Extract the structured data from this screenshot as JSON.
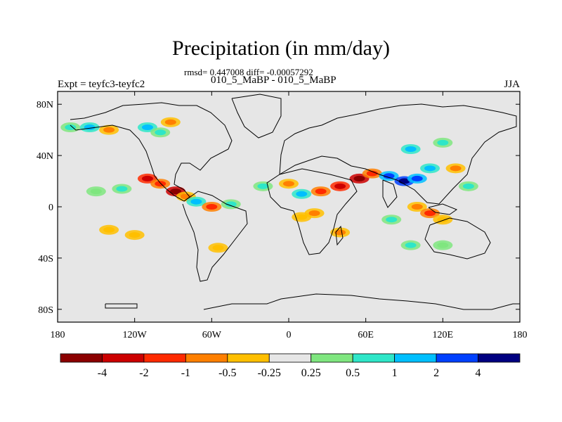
{
  "title": "Precipitation (in mm/day)",
  "stats": "rmsd= 0.447008 diff= -0.00057292",
  "subtitle": "010_5_MaBP - 010_5_MaBP",
  "expt": "Expt = teyfc3-teyfc2",
  "season": "JJA",
  "map": {
    "lon_range": [
      -180,
      180
    ],
    "lat_range": [
      -90,
      90
    ],
    "background_color": "#e6e6e6",
    "lon_ticks": [
      {
        "value": -180,
        "label": "180"
      },
      {
        "value": -120,
        "label": "120W"
      },
      {
        "value": -60,
        "label": "60W"
      },
      {
        "value": 0,
        "label": "0"
      },
      {
        "value": 60,
        "label": "60E"
      },
      {
        "value": 120,
        "label": "120E"
      },
      {
        "value": 180,
        "label": "180"
      }
    ],
    "lat_ticks": [
      {
        "value": 80,
        "label": "80N"
      },
      {
        "value": 40,
        "label": "40N"
      },
      {
        "value": 0,
        "label": "0"
      },
      {
        "value": -40,
        "label": "40S"
      },
      {
        "value": -80,
        "label": "80S"
      }
    ]
  },
  "colorbar": {
    "colors": [
      "#8b0000",
      "#cc0000",
      "#ff2a00",
      "#ff7f00",
      "#ffbf00",
      "#e6e6e6",
      "#7fe67f",
      "#2ee6c8",
      "#00bfff",
      "#0040ff",
      "#000080"
    ],
    "labels": [
      "-4",
      "-2",
      "-1",
      "-0.5",
      "-0.25",
      "0.25",
      "0.5",
      "1",
      "2",
      "4"
    ]
  },
  "anomalies": [
    {
      "lon": -170,
      "lat": 62,
      "level": 7
    },
    {
      "lon": -155,
      "lat": 62,
      "level": 8
    },
    {
      "lon": -140,
      "lat": 60,
      "level": 3
    },
    {
      "lon": -110,
      "lat": 62,
      "level": 8
    },
    {
      "lon": -100,
      "lat": 58,
      "level": 7
    },
    {
      "lon": -92,
      "lat": 66,
      "level": 3
    },
    {
      "lon": -150,
      "lat": 12,
      "level": 6
    },
    {
      "lon": -130,
      "lat": 14,
      "level": 7
    },
    {
      "lon": -110,
      "lat": 22,
      "level": 1
    },
    {
      "lon": -100,
      "lat": 18,
      "level": 2
    },
    {
      "lon": -88,
      "lat": 12,
      "level": 0
    },
    {
      "lon": -80,
      "lat": 8,
      "level": 3
    },
    {
      "lon": -72,
      "lat": 4,
      "level": 8
    },
    {
      "lon": -60,
      "lat": 0,
      "level": 2
    },
    {
      "lon": -45,
      "lat": 2,
      "level": 7
    },
    {
      "lon": -140,
      "lat": -18,
      "level": 4
    },
    {
      "lon": -120,
      "lat": -22,
      "level": 4
    },
    {
      "lon": -20,
      "lat": 16,
      "level": 7
    },
    {
      "lon": 0,
      "lat": 18,
      "level": 3
    },
    {
      "lon": 10,
      "lat": 10,
      "level": 8
    },
    {
      "lon": 25,
      "lat": 12,
      "level": 2
    },
    {
      "lon": 40,
      "lat": 16,
      "level": 1
    },
    {
      "lon": 55,
      "lat": 22,
      "level": 0
    },
    {
      "lon": 65,
      "lat": 26,
      "level": 2
    },
    {
      "lon": 78,
      "lat": 24,
      "level": 9
    },
    {
      "lon": 90,
      "lat": 20,
      "level": 10
    },
    {
      "lon": 100,
      "lat": 22,
      "level": 9
    },
    {
      "lon": 110,
      "lat": 30,
      "level": 8
    },
    {
      "lon": 95,
      "lat": 45,
      "level": 8
    },
    {
      "lon": 120,
      "lat": 50,
      "level": 7
    },
    {
      "lon": 130,
      "lat": 30,
      "level": 3
    },
    {
      "lon": 140,
      "lat": 16,
      "level": 7
    },
    {
      "lon": 100,
      "lat": 0,
      "level": 3
    },
    {
      "lon": 110,
      "lat": -5,
      "level": 2
    },
    {
      "lon": 120,
      "lat": -10,
      "level": 4
    },
    {
      "lon": 10,
      "lat": -8,
      "level": 4
    },
    {
      "lon": 20,
      "lat": -5,
      "level": 3
    },
    {
      "lon": 40,
      "lat": -20,
      "level": 3
    },
    {
      "lon": 80,
      "lat": -10,
      "level": 7
    },
    {
      "lon": 95,
      "lat": -30,
      "level": 7
    },
    {
      "lon": 120,
      "lat": -30,
      "level": 6
    },
    {
      "lon": -55,
      "lat": -32,
      "level": 4
    }
  ]
}
